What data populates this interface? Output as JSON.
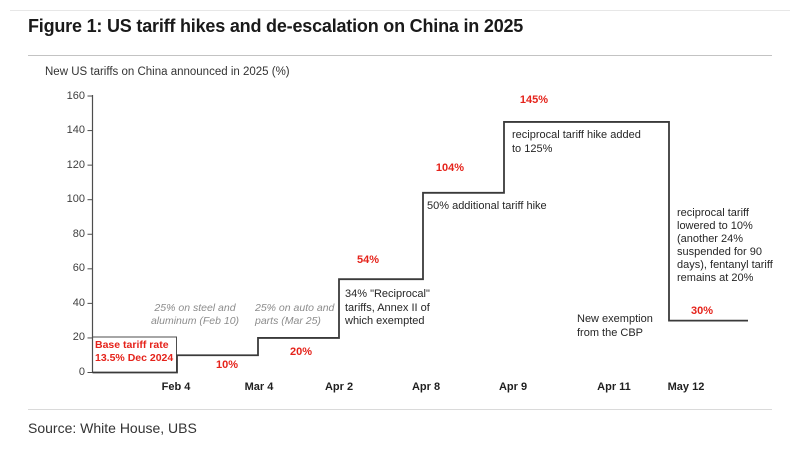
{
  "header": {
    "title": "Figure 1: US tariff hikes and de-escalation on China in 2025"
  },
  "source": {
    "label": "Source: White House, UBS"
  },
  "colors": {
    "accent_red": "#e5231b",
    "note_gray": "#8c8c8c",
    "line_dark": "#3a3a3a",
    "axis_gray": "#4d4d4d"
  },
  "chart_data": {
    "type": "line",
    "step": true,
    "title": "New US tariffs on China announced in 2025 (%)",
    "xlabel": "",
    "ylabel": "New US tariffs on China announced in 2025 (%)",
    "ylim": [
      0,
      160
    ],
    "grid": false,
    "legend": "none",
    "x_ticks": [
      "Feb 4",
      "Mar 4",
      "Apr 2",
      "Apr 8",
      "Apr 9",
      "Apr 11",
      "May 12"
    ],
    "y_axis": {
      "ticks": [
        0,
        20,
        40,
        60,
        80,
        100,
        120,
        140,
        160
      ]
    },
    "events": [
      {
        "date": "Dec 2024",
        "value": 0,
        "note": "Base tariff rate\n13.5% Dec 2024"
      },
      {
        "date": "Feb 4",
        "value": 10,
        "label": "10%",
        "note": "25% on steel and\naluminum (Feb 10)"
      },
      {
        "date": "Mar 4",
        "value": 20,
        "label": "20%",
        "note": "25% on auto and\nparts (Mar 25)"
      },
      {
        "date": "Apr 2",
        "value": 54,
        "label": "54%",
        "note": "34% \"Reciprocal\"\ntariffs, Annex II of\nwhich exempted"
      },
      {
        "date": "Apr 8",
        "value": 104,
        "label": "104%",
        "note": "50% additional tariff hike"
      },
      {
        "date": "Apr 9",
        "value": 145,
        "label": "145%",
        "note": "reciprocal tariff hike added\nto 125%"
      },
      {
        "date": "Apr 11",
        "value": 145,
        "note": "New exemption\nfrom the CBP"
      },
      {
        "date": "May 12",
        "value": 30,
        "label": "30%",
        "note": "reciprocal tariff\nlowered to 10%\n(another 24%\nsuspended for 90\ndays), fentanyl tariff\nremains at 20%"
      }
    ]
  }
}
